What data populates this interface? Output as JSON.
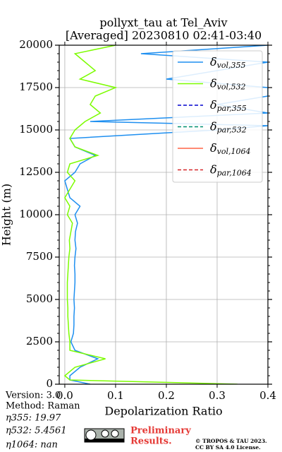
{
  "chart_data": {
    "type": "profile",
    "title": [
      "pollyxt_tau at Tel_Aviv",
      "[Averaged] 20230810 02:41-03:40"
    ],
    "xlabel": "Depolarization Ratio",
    "ylabel": "Height (m)",
    "height": [
      0,
      250,
      500,
      1000,
      1500,
      2000,
      2500,
      3000,
      3500,
      4000,
      4500,
      5000,
      5500,
      6000,
      6500,
      7000,
      7500,
      8000,
      8500,
      9000,
      9500,
      10000,
      10500,
      11000,
      11500,
      12000,
      12500,
      13000,
      13500,
      14000,
      14500,
      15000,
      15250,
      15500,
      16000,
      16500,
      17000,
      17500,
      18000,
      18500,
      19000,
      19500,
      20000
    ],
    "series": [
      {
        "name": "δvol,355",
        "color": "#1e8ff0",
        "linestyle": "solid",
        "values": [
          0.05,
          0.01,
          0.01,
          0.03,
          0.065,
          0.02,
          0.012,
          0.017,
          0.018,
          0.018,
          0.019,
          0.018,
          0.019,
          0.02,
          0.02,
          0.019,
          0.02,
          0.022,
          0.02,
          0.021,
          0.025,
          0.02,
          0.03,
          0.01,
          0.005,
          0.0,
          0.02,
          0.03,
          0.06,
          0.02,
          0.01,
          0.3,
          0.4,
          0.05,
          0.4,
          0.3,
          0.4,
          0.4,
          0.2,
          0.3,
          0.4,
          0.15,
          0.4
        ]
      },
      {
        "name": "δvol,532",
        "color": "#7cfc00",
        "linestyle": "solid",
        "values": [
          0.34,
          0.01,
          0.0,
          0.02,
          0.08,
          0.01,
          0.01,
          0.008,
          0.007,
          0.006,
          0.006,
          0.005,
          0.005,
          0.005,
          0.006,
          0.007,
          0.008,
          0.01,
          0.009,
          0.012,
          0.015,
          0.005,
          0.01,
          0.0,
          0.01,
          0.02,
          0.005,
          0.01,
          0.065,
          0.02,
          0.01,
          0.02,
          0.03,
          0.04,
          0.07,
          0.05,
          0.06,
          0.1,
          0.03,
          0.06,
          0.04,
          0.02,
          0.1
        ]
      },
      {
        "name": "δpar,355",
        "color": "#0000cd",
        "linestyle": "dashed"
      },
      {
        "name": "δpar,532",
        "color": "#009070",
        "linestyle": "dashed"
      },
      {
        "name": "δvol,1064",
        "color": "#ff6347",
        "linestyle": "solid"
      },
      {
        "name": "δpar,1064",
        "color": "#d62728",
        "linestyle": "dashed"
      }
    ],
    "xlim": [
      -0.011,
      0.4
    ],
    "xticks": [
      {
        "value": 0,
        "label": "0.0"
      },
      0.1,
      0.2,
      0.3,
      0.4
    ],
    "ylim": [
      0,
      20000
    ],
    "yticks": [
      0,
      2500,
      5000,
      7500,
      10000,
      12500,
      15000,
      17500,
      20000
    ],
    "grid": true,
    "legend": "upper right"
  },
  "info": {
    "lines": [
      "Version: 3.0",
      "Method: Raman",
      "η355:  19.97",
      "η532: 5.4561",
      "η1064:    nan"
    ],
    "notice": [
      "Preliminary",
      "Results."
    ],
    "copyright": [
      "© TROPOS & TAU 2023.",
      "CC BY SA 4.0 License."
    ]
  }
}
